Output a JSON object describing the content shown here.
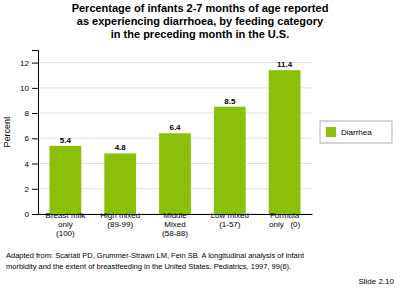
{
  "chart_data": {
    "type": "bar",
    "title": "Percentage of infants 2-7 months of age reported\nas experiencing diarrhoea, by feeding category\nin the preceding month in the U.S.",
    "ylabel": "Percent",
    "categories": [
      "Breast milk\nonly\n(100)",
      "High mixed\n(89-99)",
      "Middle\nMixed\n(58-88)",
      "Low mixed\n(1-57)",
      "Formula\nonly   (0)"
    ],
    "series": [
      {
        "name": "Diarrhea",
        "color": "#8ac007",
        "values": [
          5.4,
          4.8,
          6.4,
          8.5,
          11.4
        ]
      }
    ],
    "ylim": [
      0,
      13
    ],
    "yticks": [
      0,
      2,
      4,
      6,
      8,
      10,
      12
    ],
    "grid": true,
    "legend": "right",
    "data_labels": true,
    "footnote": [
      [
        "Adapted from: Scariati PD, Grummer-Strawn LM, Fein SB. A longitudinal analysis of infant"
      ],
      [
        "morbidity and the extent of breastfeeding in the United States. ",
        "Pediatrics,",
        " 1997, 99(6)."
      ]
    ],
    "annotations": [
      "Slide 2.10"
    ]
  }
}
